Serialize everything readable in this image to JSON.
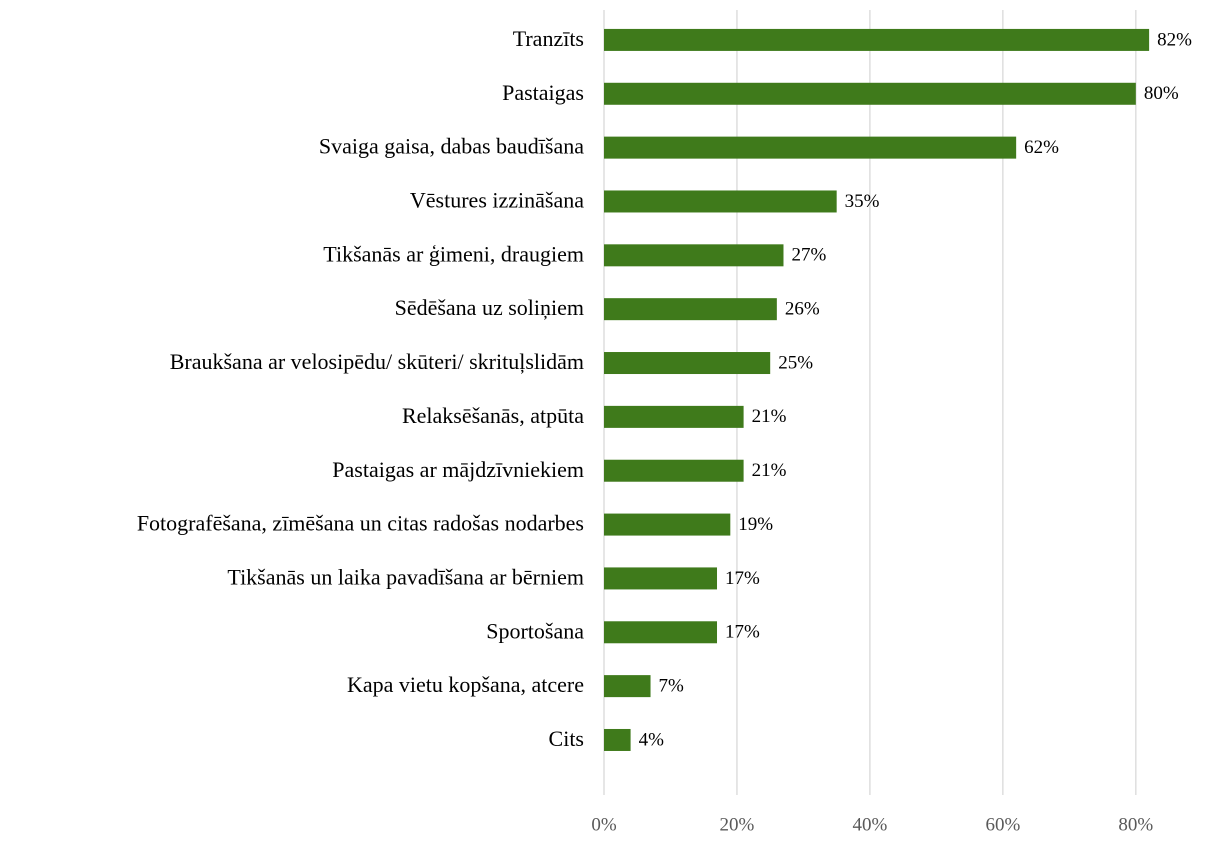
{
  "chart_data": {
    "type": "bar",
    "orientation": "horizontal",
    "categories": [
      "Tranzīts",
      "Pastaigas",
      "Svaiga gaisa, dabas baudīšana",
      "Vēstures izzināšana",
      "Tikšanās ar ģimeni, draugiem",
      "Sēdēšana uz soliņiem",
      "Braukšana ar velosipēdu/ skūteri/ skrituļslidām",
      "Relaksēšanās, atpūta",
      "Pastaigas ar mājdzīvniekiem",
      "Fotografēšana, zīmēšana un citas radošas nodarbes",
      "Tikšanās un laika pavadīšana ar bērniem",
      "Sportošana",
      "Kapa vietu kopšana, atcere",
      "Cits"
    ],
    "values": [
      82,
      80,
      62,
      35,
      27,
      26,
      25,
      21,
      21,
      19,
      17,
      17,
      7,
      4
    ],
    "value_labels": [
      "82%",
      "80%",
      "62%",
      "35%",
      "27%",
      "26%",
      "25%",
      "21%",
      "21%",
      "19%",
      "17%",
      "17%",
      "7%",
      "4%"
    ],
    "color": "#3f7a1b",
    "xlim": [
      0,
      88
    ],
    "xticks": [
      {
        "value": 0,
        "label": "0%"
      },
      {
        "value": 20,
        "label": "20%"
      },
      {
        "value": 40,
        "label": "40%"
      },
      {
        "value": 60,
        "label": "60%"
      },
      {
        "value": 80,
        "label": "80%"
      }
    ],
    "grid": true
  }
}
